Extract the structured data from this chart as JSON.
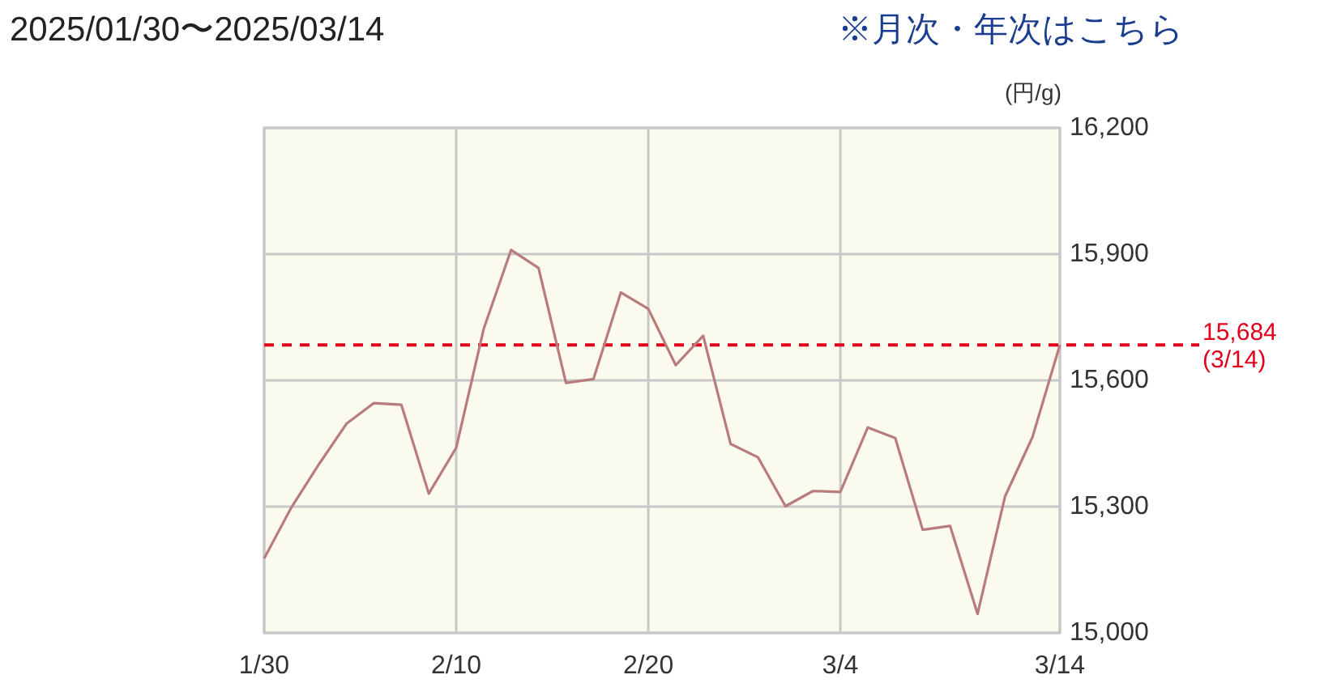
{
  "chart_data": {
    "type": "line",
    "title": "2025/01/30〜2025/03/14",
    "ylabel": "(円/g)",
    "annotations": [
      "※月次・年次はこちら"
    ],
    "categories": [
      "1/30",
      null,
      null,
      null,
      null,
      null,
      null,
      "2/10",
      null,
      null,
      null,
      null,
      null,
      null,
      "2/20",
      null,
      null,
      null,
      null,
      null,
      null,
      "3/4",
      null,
      null,
      null,
      null,
      null,
      null,
      null,
      "3/14"
    ],
    "series": [
      {
        "color": "#b87c7c",
        "values": [
          15177,
          15299,
          15401,
          15497,
          15546,
          15542,
          15331,
          15440,
          15722,
          15910,
          15867,
          15594,
          15603,
          15809,
          15770,
          15636,
          15706,
          15449,
          15417,
          15301,
          15337,
          15335,
          15488,
          15463,
          15245,
          15254,
          15045,
          15324,
          15465,
          15684
        ]
      }
    ],
    "ylim": [
      15000,
      16200
    ],
    "yticks": [
      {
        "value": 15000,
        "label": "15,000"
      },
      {
        "value": 15300,
        "label": "15,300"
      },
      {
        "value": 15600,
        "label": "15,600"
      },
      {
        "value": 15900,
        "label": "15,900"
      },
      {
        "value": 16200,
        "label": "16,200"
      }
    ],
    "ref_lines": [
      {
        "axis": "y",
        "value": 15684,
        "label": "15,684 (3/14)",
        "color": "#e0001b",
        "line_style": "dashed"
      }
    ],
    "grid": true,
    "marker": "none",
    "line_style": "solid"
  }
}
